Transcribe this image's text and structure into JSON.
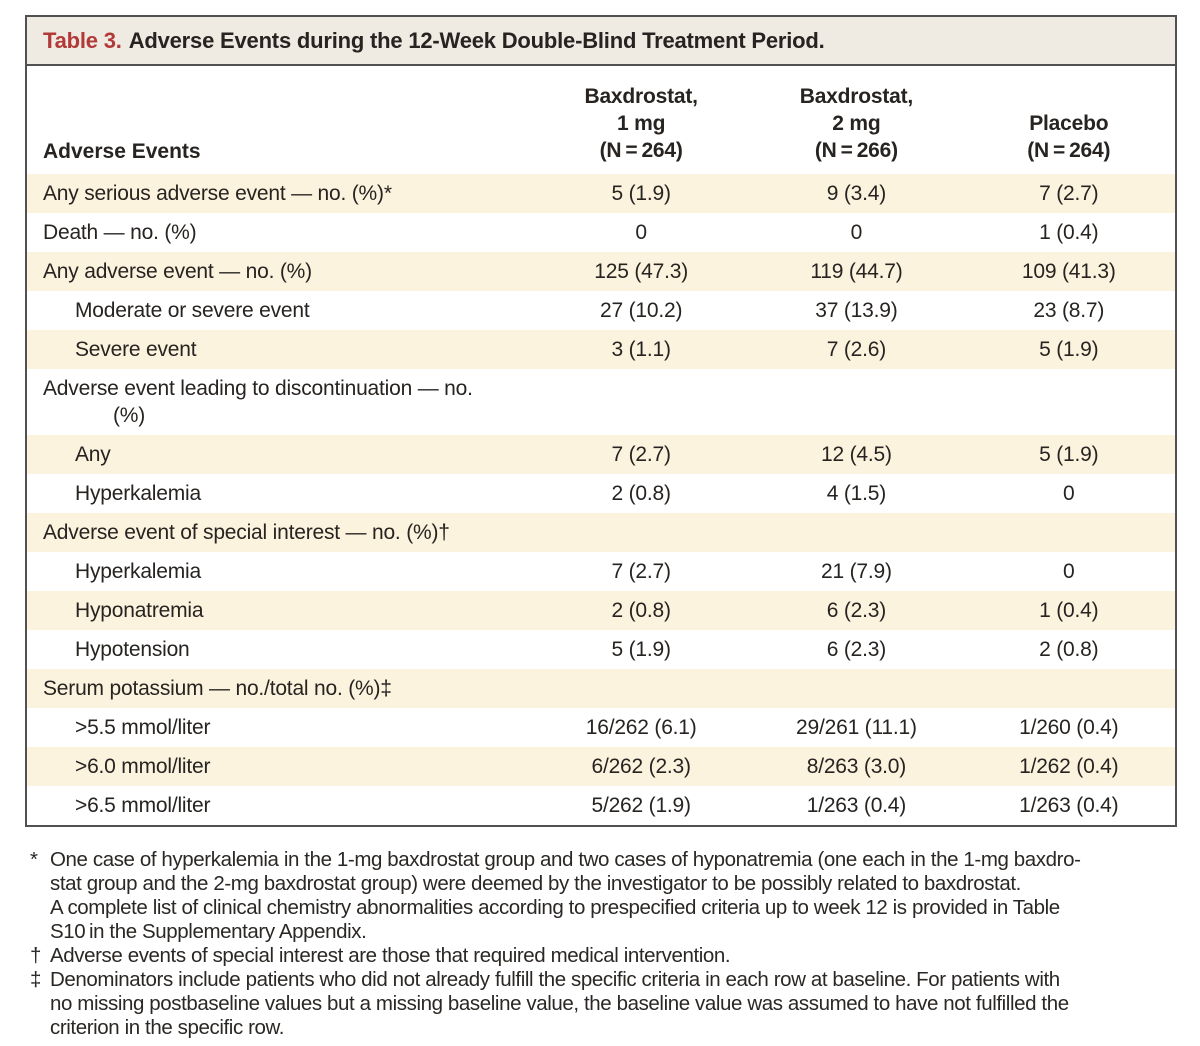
{
  "title": {
    "prefix": "Table 3.",
    "text": "Adverse Events during the 12-Week Double-Blind Treatment Period."
  },
  "colors": {
    "accent_red": "#B23937",
    "title_band_bg": "#EFEAE2",
    "shaded_row_bg": "#FCF3DF",
    "border": "#515153",
    "text": "#272320"
  },
  "table": {
    "row_header": "Adverse Events",
    "columns": [
      {
        "line1": "Baxdrostat,",
        "line2": "1 mg",
        "line3": "(N = 264)"
      },
      {
        "line1": "Baxdrostat,",
        "line2": "2 mg",
        "line3": "(N = 266)"
      },
      {
        "line1": "Placebo",
        "line2": "(N = 264)"
      }
    ],
    "rows": [
      {
        "label": "Any serious adverse event — no. (%)*",
        "c1": "5 (1.9)",
        "c2": "9 (3.4)",
        "c3": "7 (2.7)"
      },
      {
        "label": "Death — no. (%)",
        "c1": "0",
        "c2": "0",
        "c3": "1 (0.4)"
      },
      {
        "label": "Any adverse event — no. (%)",
        "c1": "125 (47.3)",
        "c2": "119 (44.7)",
        "c3": "109 (41.3)"
      },
      {
        "label": "Moderate or severe event",
        "c1": "27 (10.2)",
        "c2": "37 (13.9)",
        "c3": "23 (8.7)"
      },
      {
        "label": "Severe event",
        "c1": "3 (1.1)",
        "c2": "7 (2.6)",
        "c3": "5 (1.9)"
      },
      {
        "label": "Adverse event leading to discontinuation — no.",
        "label_line2": "(%)",
        "c1": "",
        "c2": "",
        "c3": ""
      },
      {
        "label": "Any",
        "c1": "7 (2.7)",
        "c2": "12 (4.5)",
        "c3": "5 (1.9)"
      },
      {
        "label": "Hyperkalemia",
        "c1": "2 (0.8)",
        "c2": "4 (1.5)",
        "c3": "0"
      },
      {
        "label": "Adverse event of special interest — no. (%)†",
        "c1": "",
        "c2": "",
        "c3": ""
      },
      {
        "label": "Hyperkalemia",
        "c1": "7 (2.7)",
        "c2": "21 (7.9)",
        "c3": "0"
      },
      {
        "label": "Hyponatremia",
        "c1": "2 (0.8)",
        "c2": "6 (2.3)",
        "c3": "1 (0.4)"
      },
      {
        "label": "Hypotension",
        "c1": "5 (1.9)",
        "c2": "6 (2.3)",
        "c3": "2 (0.8)"
      },
      {
        "label": "Serum potassium — no./total no. (%)‡",
        "c1": "",
        "c2": "",
        "c3": ""
      },
      {
        "label": ">5.5 mmol/liter",
        "c1": "16/262 (6.1)",
        "c2": "29/261 (11.1)",
        "c3": "1/260 (0.4)"
      },
      {
        "label": ">6.0 mmol/liter",
        "c1": "6/262 (2.3)",
        "c2": "8/263 (3.0)",
        "c3": "1/262 (0.4)"
      },
      {
        "label": ">6.5 mmol/liter",
        "c1": "5/262 (1.9)",
        "c2": "1/263 (0.4)",
        "c3": "1/263 (0.4)"
      }
    ]
  },
  "footnotes": [
    {
      "marker": "*",
      "line1": "One case of hyperkalemia in the 1-mg baxdrostat group and two cases of hyponatremia (one each in the 1-mg baxdro-",
      "line2": "stat group and the 2-mg baxdrostat group) were deemed by the investigator to be possibly related to baxdrostat.",
      "line3": "A complete list of clinical chemistry abnormalities according to prespecified criteria up to week 12 is provided in Table",
      "line4": "S10 in the Supplementary Appendix."
    },
    {
      "marker": "†",
      "line1": "Adverse events of special interest are those that required medical intervention."
    },
    {
      "marker": "‡",
      "line1": "Denominators include patients who did not already fulfill the specific criteria in each row at baseline. For patients with",
      "line2": "no missing postbaseline values but a missing baseline value, the baseline value was assumed to have not fulfilled the",
      "line3": "criterion in the specific row."
    }
  ]
}
